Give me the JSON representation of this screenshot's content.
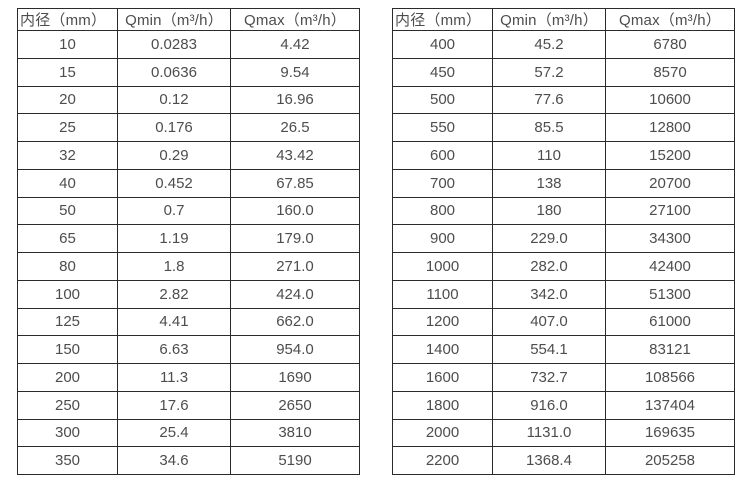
{
  "page": {
    "background_color": "#ffffff",
    "border_color": "#2b2b2b",
    "text_color": "#4d4d4d"
  },
  "tables": [
    {
      "name": "flow-table-small-diameters",
      "headers": [
        "内径（mm）",
        "Qmin（m³/h）",
        "Qmax（m³/h）"
      ],
      "rows": [
        [
          "10",
          "0.0283",
          "4.42"
        ],
        [
          "15",
          "0.0636",
          "9.54"
        ],
        [
          "20",
          "0.12",
          "16.96"
        ],
        [
          "25",
          "0.176",
          "26.5"
        ],
        [
          "32",
          "0.29",
          "43.42"
        ],
        [
          "40",
          "0.452",
          "67.85"
        ],
        [
          "50",
          "0.7",
          "160.0"
        ],
        [
          "65",
          "1.19",
          "179.0"
        ],
        [
          "80",
          "1.8",
          "271.0"
        ],
        [
          "100",
          "2.82",
          "424.0"
        ],
        [
          "125",
          "4.41",
          "662.0"
        ],
        [
          "150",
          "6.63",
          "954.0"
        ],
        [
          "200",
          "11.3",
          "1690"
        ],
        [
          "250",
          "17.6",
          "2650"
        ],
        [
          "300",
          "25.4",
          "3810"
        ],
        [
          "350",
          "34.6",
          "5190"
        ]
      ]
    },
    {
      "name": "flow-table-large-diameters",
      "headers": [
        "内径（mm）",
        "Qmin（m³/h）",
        "Qmax（m³/h）"
      ],
      "rows": [
        [
          "400",
          "45.2",
          "6780"
        ],
        [
          "450",
          "57.2",
          "8570"
        ],
        [
          "500",
          "77.6",
          "10600"
        ],
        [
          "550",
          "85.5",
          "12800"
        ],
        [
          "600",
          "110",
          "15200"
        ],
        [
          "700",
          "138",
          "20700"
        ],
        [
          "800",
          "180",
          "27100"
        ],
        [
          "900",
          "229.0",
          "34300"
        ],
        [
          "1000",
          "282.0",
          "42400"
        ],
        [
          "1100",
          "342.0",
          "51300"
        ],
        [
          "1200",
          "407.0",
          "61000"
        ],
        [
          "1400",
          "554.1",
          "83121"
        ],
        [
          "1600",
          "732.7",
          "108566"
        ],
        [
          "1800",
          "916.0",
          "137404"
        ],
        [
          "2000",
          "1131.0",
          "169635"
        ],
        [
          "2200",
          "1368.4",
          "205258"
        ]
      ]
    }
  ]
}
